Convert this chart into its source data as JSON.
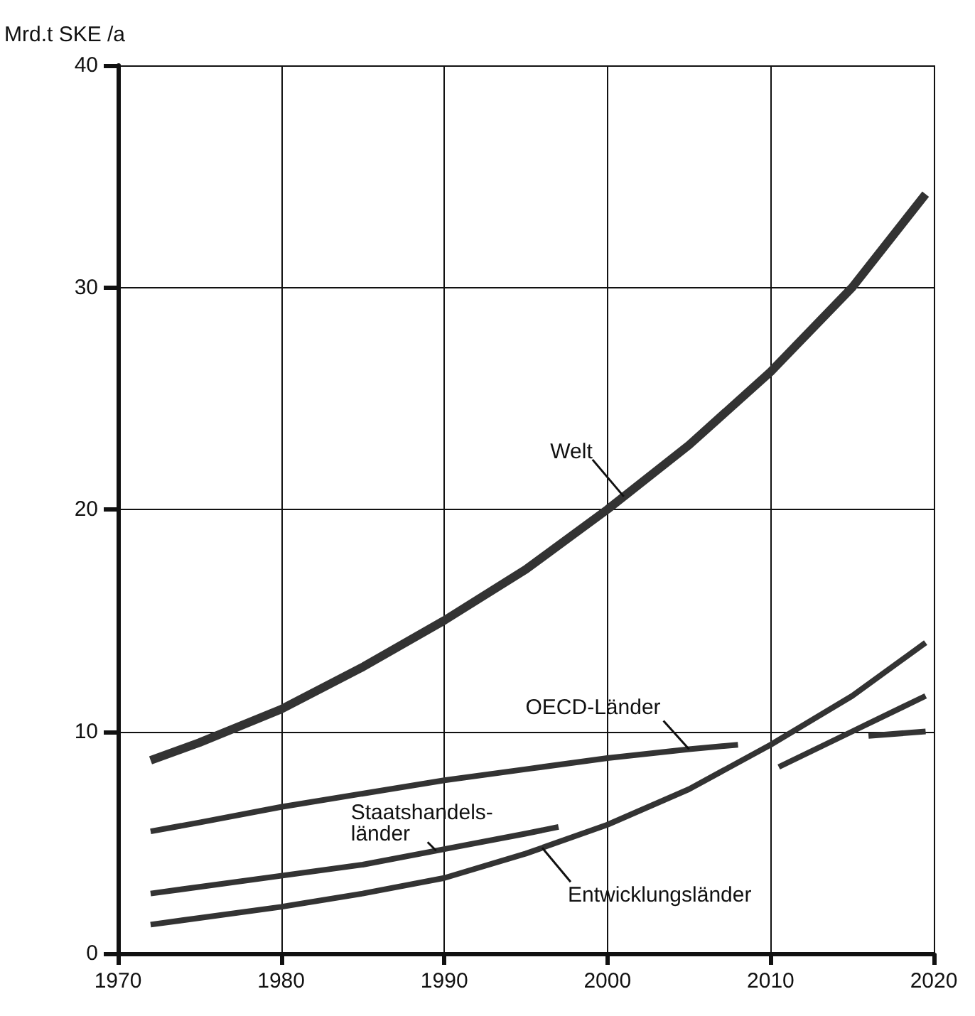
{
  "chart_data": {
    "type": "line",
    "ylabel": "Mrd.t SKE /a",
    "xlim": [
      1970,
      2020
    ],
    "xticks": [
      1970,
      1980,
      1990,
      2000,
      2010,
      2020
    ],
    "ylim": [
      0,
      40
    ],
    "yticks": [
      0,
      10,
      20,
      30,
      40
    ],
    "grid": true,
    "legend": false,
    "marker": "none",
    "line_style": "solid",
    "series": [
      {
        "name": "Welt",
        "color": "#333333",
        "x": [
          1972,
          1975,
          1980,
          1985,
          1990,
          1995,
          2000,
          2005,
          2010,
          2015,
          2019.5
        ],
        "values": [
          8.7,
          9.5,
          11,
          12.9,
          15,
          17.3,
          20,
          22.9,
          26.2,
          30,
          34.2
        ]
      },
      {
        "name": "OECD-Länder",
        "color": "#333333",
        "x": [
          1972,
          1975,
          1980,
          1985,
          1990,
          1995,
          2000,
          2005,
          2008,
          2012,
          2016,
          2019.5
        ],
        "values": [
          5.5,
          5.9,
          6.6,
          7.2,
          7.8,
          8.3,
          8.8,
          9.2,
          9.4,
          null,
          9.8,
          10
        ]
      },
      {
        "name": "Staatshandels-\nländer",
        "color": "#333333",
        "x": [
          1972,
          1975,
          1980,
          1985,
          1990,
          1995,
          1997,
          2003,
          2010.5,
          2015,
          2019.5
        ],
        "values": [
          2.7,
          3.0,
          3.5,
          4.0,
          4.7,
          5.4,
          5.7,
          null,
          8.4,
          10,
          11.6
        ]
      },
      {
        "name": "Entwicklungsländer",
        "color": "#333333",
        "x": [
          1972,
          1975,
          1980,
          1985,
          1990,
          1995,
          2000,
          2005,
          2010,
          2015,
          2019.5
        ],
        "values": [
          1.3,
          1.6,
          2.1,
          2.7,
          3.4,
          4.5,
          5.8,
          7.4,
          9.4,
          11.6,
          14
        ]
      }
    ]
  }
}
